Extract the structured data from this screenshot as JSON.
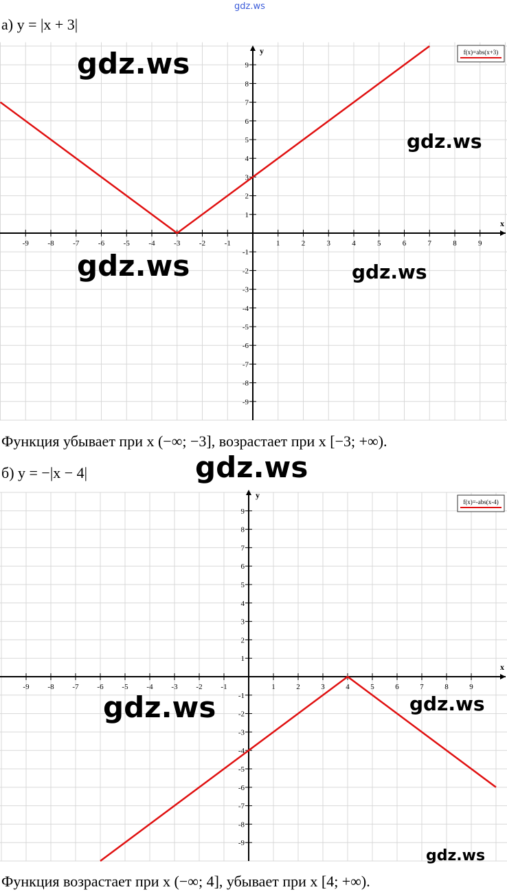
{
  "header_watermark": "gdz.ws",
  "part_a": {
    "label": "а) y = |x + 3|",
    "conclusion": "Функция убывает при x (−∞; −3], возрастает при x [−3; +∞)."
  },
  "part_b": {
    "label": "б) y = −|x − 4|",
    "conclusion": "Функция возрастает при x (−∞; 4], убывает при x [4; +∞)."
  },
  "watermarks": [
    "gdz.ws",
    "gdz.ws",
    "gdz.ws",
    "gdz.ws",
    "gdz.ws",
    "gdz.ws",
    "gdz.ws",
    "gdz.ws"
  ],
  "colors": {
    "line": "#e01010",
    "grid": "#d8d8d8",
    "axis": "#000000"
  },
  "chart_data": [
    {
      "type": "line",
      "legend": "f(x)=abs(x+3)",
      "legend_position": "top-right",
      "xlabel": "x",
      "ylabel": "y",
      "xlim": [
        -10,
        10
      ],
      "ylim": [
        -10,
        10.2
      ],
      "xticks": [
        -9,
        -8,
        -7,
        -6,
        -5,
        -4,
        -3,
        -2,
        -1,
        1,
        2,
        3,
        4,
        5,
        6,
        7,
        8,
        9
      ],
      "yticks": [
        9,
        8,
        7,
        6,
        5,
        4,
        3,
        2,
        1,
        -1,
        -2,
        -3,
        -4,
        -5,
        -6,
        -7,
        -8,
        -9
      ],
      "grid": true,
      "series": [
        {
          "points": [
            [
              -10,
              7
            ],
            [
              -3,
              0
            ],
            [
              7,
              10
            ]
          ]
        }
      ]
    },
    {
      "type": "line",
      "legend": "f(x)=-abs(x-4)",
      "legend_position": "top-right",
      "xlabel": "x",
      "ylabel": "y",
      "xlim": [
        -10,
        10.5
      ],
      "ylim": [
        -10,
        10
      ],
      "xticks": [
        -9,
        -8,
        -7,
        -6,
        -5,
        -4,
        -3,
        -2,
        -1,
        1,
        2,
        3,
        4,
        5,
        6,
        7,
        8,
        9
      ],
      "yticks": [
        9,
        8,
        7,
        6,
        5,
        4,
        3,
        2,
        1,
        -1,
        -2,
        -3,
        -4,
        -5,
        -6,
        -7,
        -8,
        -9
      ],
      "grid": true,
      "series": [
        {
          "points": [
            [
              -6,
              -10
            ],
            [
              4,
              0
            ],
            [
              10,
              -6
            ]
          ]
        }
      ]
    }
  ]
}
